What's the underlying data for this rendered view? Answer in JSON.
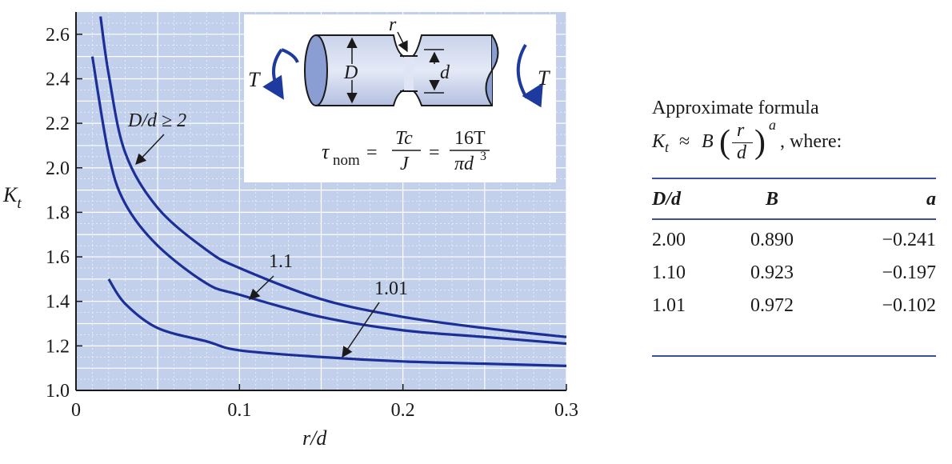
{
  "chart_data": {
    "type": "line",
    "xlabel": "r/d",
    "ylabel": "K_t",
    "xlim": [
      0,
      0.3
    ],
    "ylim": [
      1.0,
      2.7
    ],
    "x_ticks": [
      "0",
      "0.1",
      "0.2",
      "0.3"
    ],
    "y_ticks": [
      "1.0",
      "1.2",
      "1.4",
      "1.6",
      "1.8",
      "2.0",
      "2.2",
      "2.4",
      "2.6"
    ],
    "grid": true,
    "series": [
      {
        "name": "D/d ≥ 2",
        "x": [
          0.015,
          0.02,
          0.03,
          0.05,
          0.08,
          0.1,
          0.15,
          0.2,
          0.25,
          0.3
        ],
        "y": [
          2.68,
          2.42,
          2.07,
          1.82,
          1.63,
          1.55,
          1.41,
          1.33,
          1.28,
          1.24
        ]
      },
      {
        "name": "1.1",
        "x": [
          0.01,
          0.02,
          0.03,
          0.05,
          0.08,
          0.1,
          0.15,
          0.2,
          0.25,
          0.3
        ],
        "y": [
          2.5,
          2.06,
          1.84,
          1.65,
          1.48,
          1.43,
          1.33,
          1.27,
          1.24,
          1.21
        ]
      },
      {
        "name": "1.01",
        "x": [
          0.02,
          0.03,
          0.05,
          0.08,
          0.1,
          0.15,
          0.2,
          0.25,
          0.3
        ],
        "y": [
          1.5,
          1.39,
          1.28,
          1.22,
          1.18,
          1.15,
          1.13,
          1.12,
          1.11
        ]
      }
    ],
    "annotations": [
      "D/d ≥ 2",
      "1.1",
      "1.01"
    ]
  },
  "diagram": {
    "torque_left": "T",
    "torque_right": "T",
    "label_r": "r",
    "label_D": "D",
    "label_d": "d"
  },
  "nominal_stress": {
    "tau": "τ",
    "sub": "nom",
    "eq1": "=",
    "num1": "Tc",
    "den1": "J",
    "eq2": "=",
    "num2": "16T",
    "den2_pre": "πd",
    "den2_exp": "3"
  },
  "formula": {
    "title": "Approximate formula",
    "K": "K",
    "K_sub": "t",
    "approx": "≈",
    "B": "B",
    "num": "r",
    "den": "d",
    "exp": "a",
    "suffix": ", where:"
  },
  "table": {
    "headers": [
      "D/d",
      "B",
      "a"
    ],
    "rows": [
      [
        "2.00",
        "0.890",
        "−0.241"
      ],
      [
        "1.10",
        "0.923",
        "−0.197"
      ],
      [
        "1.01",
        "0.972",
        "−0.102"
      ]
    ]
  }
}
